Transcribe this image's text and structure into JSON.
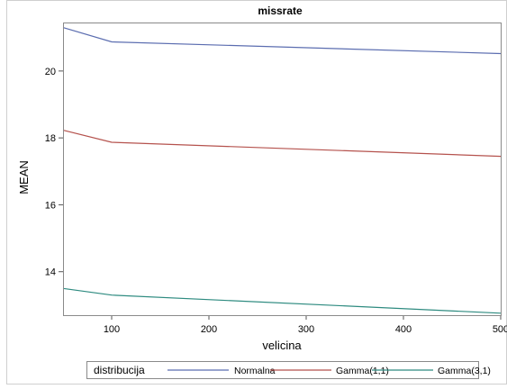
{
  "chart_data": {
    "type": "line",
    "title": "missrate",
    "xlabel": "velicina",
    "ylabel": "MEAN",
    "xlim": [
      50,
      500
    ],
    "ylim": [
      12.7,
      21.45
    ],
    "xticks": [
      100,
      200,
      300,
      400,
      500
    ],
    "yticks": [
      14,
      16,
      18,
      20
    ],
    "grid": false,
    "legend": {
      "title": "distribucija",
      "placement": "bottom"
    },
    "x": [
      50,
      100,
      500
    ],
    "series": [
      {
        "name": "Normalna",
        "color": "#5b6db0",
        "values": [
          21.3,
          20.87,
          20.52
        ]
      },
      {
        "name": "Gamma(1,1)",
        "color": "#b5524d",
        "values": [
          18.23,
          17.87,
          17.45
        ]
      },
      {
        "name": "Gamma(3,1)",
        "color": "#2e8b80",
        "values": [
          13.5,
          13.3,
          12.76
        ]
      }
    ]
  }
}
